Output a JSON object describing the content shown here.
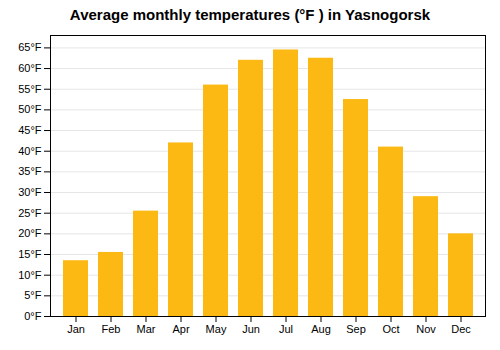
{
  "chart_data": {
    "type": "bar",
    "title": "Average monthly temperatures (°F ) in Yasnogorsk",
    "categories": [
      "Jan",
      "Feb",
      "Mar",
      "Apr",
      "May",
      "Jun",
      "Jul",
      "Aug",
      "Sep",
      "Oct",
      "Nov",
      "Dec"
    ],
    "values": [
      13.5,
      15.5,
      25.5,
      42.0,
      56.0,
      62.0,
      64.5,
      62.5,
      52.5,
      41.0,
      29.0,
      20.0
    ],
    "color": "#FDB913",
    "ylim": [
      0,
      68
    ],
    "yticks": [
      {
        "value": 0,
        "label": "0°F"
      },
      {
        "value": 5,
        "label": "5°F"
      },
      {
        "value": 10,
        "label": "10°F"
      },
      {
        "value": 15,
        "label": "15°F"
      },
      {
        "value": 20,
        "label": "20°F"
      },
      {
        "value": 25,
        "label": "25°F"
      },
      {
        "value": 30,
        "label": "30°F"
      },
      {
        "value": 35,
        "label": "35°F"
      },
      {
        "value": 40,
        "label": "40°F"
      },
      {
        "value": 45,
        "label": "45°F"
      },
      {
        "value": 50,
        "label": "50°F"
      },
      {
        "value": 55,
        "label": "55°F"
      },
      {
        "value": 60,
        "label": "60°F"
      },
      {
        "value": 65,
        "label": "65°F"
      }
    ],
    "grid": true
  }
}
